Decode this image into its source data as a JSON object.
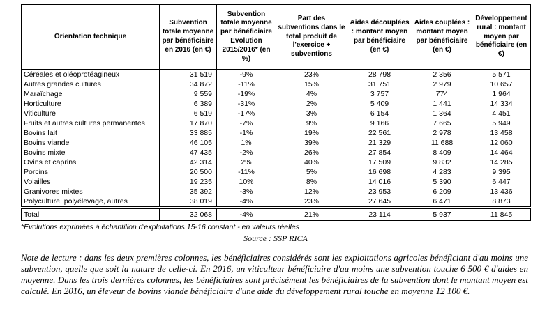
{
  "table": {
    "headers": [
      "Orientation technique",
      "Subvention totale moyenne par bénéficiaire en 2016 (en €)",
      "Subvention totale moyenne par bénéficiaire Evolution 2015/2016* (en %)",
      "Part des subventions dans le total produit de l'exercice + subventions",
      "Aides découplées : montant moyen par bénéficiaire (en €)",
      "Aides couplées : montant moyen par bénéficiaire (en €)",
      "Développement rural : montant moyen par bénéficiaire (en €)"
    ],
    "rows": [
      {
        "cells": [
          "Céréales et oléoprotéagineux",
          "31 519",
          "-9%",
          "23%",
          "28 798",
          "2 356",
          "5 571"
        ]
      },
      {
        "cells": [
          "Autres grandes cultures",
          "34 872",
          "-11%",
          "15%",
          "31 751",
          "2 979",
          "10 657"
        ]
      },
      {
        "cells": [
          "Maraîchage",
          "9 559",
          "-19%",
          "4%",
          "3 757",
          "774",
          "1 964"
        ]
      },
      {
        "cells": [
          "Horticulture",
          "6 389",
          "-31%",
          "2%",
          "5 409",
          "1 441",
          "14 334"
        ]
      },
      {
        "cells": [
          "Viticulture",
          "6 519",
          "-17%",
          "3%",
          "6 154",
          "1 364",
          "4 451"
        ]
      },
      {
        "cells": [
          "Fruits et autres cultures permanentes",
          "17 870",
          "-7%",
          "9%",
          "9 166",
          "7 665",
          "5 949"
        ]
      },
      {
        "cells": [
          "Bovins lait",
          "33 885",
          "-1%",
          "19%",
          "22 561",
          "2 978",
          "13 458"
        ]
      },
      {
        "cells": [
          "Bovins viande",
          "46 105",
          "1%",
          "39%",
          "21 329",
          "11 688",
          "12 060"
        ]
      },
      {
        "cells": [
          "Bovins mixte",
          "47 435",
          "-2%",
          "26%",
          "27 854",
          "8 409",
          "14 464"
        ]
      },
      {
        "cells": [
          "Ovins et caprins",
          "42 314",
          "2%",
          "40%",
          "17 509",
          "9 832",
          "14 285"
        ]
      },
      {
        "cells": [
          "Porcins",
          "20 500",
          "-11%",
          "5%",
          "16 698",
          "4 283",
          "9 395"
        ]
      },
      {
        "cells": [
          "Volailles",
          "19 235",
          "10%",
          "8%",
          "14 016",
          "5 390",
          "6 447"
        ]
      },
      {
        "cells": [
          "Granivores mixtes",
          "35 392",
          "-3%",
          "12%",
          "23 953",
          "6 209",
          "13 436"
        ]
      },
      {
        "cells": [
          "Polyculture, polyélevage, autres",
          "38 019",
          "-4%",
          "23%",
          "27 645",
          "6 471",
          "8 873"
        ]
      }
    ],
    "total_row": {
      "cells": [
        "Total",
        "32 068",
        "-4%",
        "21%",
        "23 114",
        "5 937",
        "11 845"
      ]
    }
  },
  "footnote": "*Evolutions exprimées à échantillon d'exploitations 15-16 constant - en valeurs réelles",
  "source": "Source : SSP RICA",
  "note": "Note de lecture : dans les deux premières colonnes, les bénéficiaires considérés sont les exploitations agricoles bénéficiant d'au moins une subvention, quelle que soit la nature de celle-ci. En 2016, un viticulteur bénéficiaire d'au moins une subvention touche 6 500 € d'aides en moyenne. Dans les trois dernières colonnes, les bénéficiaires sont précisément les bénéficiaires de la subvention dont le montant moyen est calculé. En 2016, un éleveur de bovins viande bénéficiaire d'une aide du développement rural touche en moyenne 12 100 €."
}
